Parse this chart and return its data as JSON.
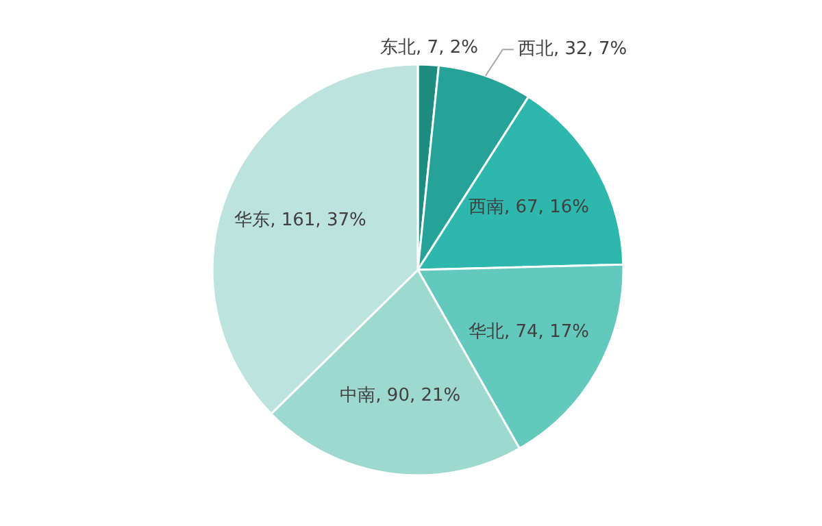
{
  "chart_data": {
    "type": "pie",
    "categories": [
      "东北",
      "西北",
      "西南",
      "华北",
      "中南",
      "华东"
    ],
    "values": [
      7,
      32,
      67,
      74,
      90,
      161
    ],
    "value_labels": [
      "7, 2%",
      "32, 7%",
      "67, 16%",
      "74, 17%",
      "90, 21%",
      "161, 37%"
    ],
    "colors": [
      "#1e8c80",
      "#26a398",
      "#2db7ad",
      "#64c9bd",
      "#9dd9cf",
      "#bde3de"
    ]
  }
}
